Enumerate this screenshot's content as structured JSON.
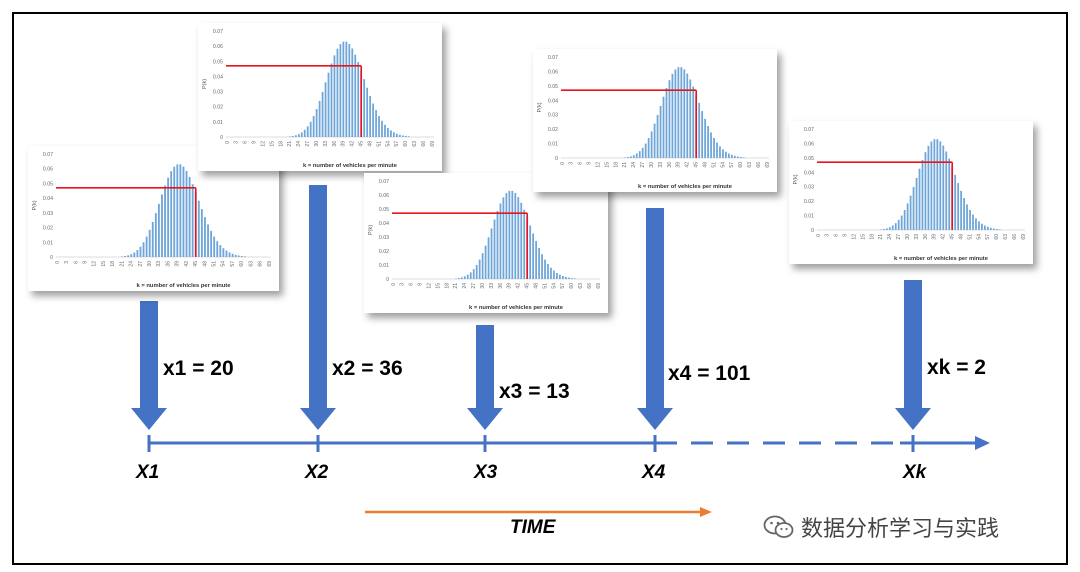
{
  "charts": {
    "y_axis_label": "P(k)",
    "x_axis_label": "k = number of vehicles per minute",
    "y_ticks": [
      "0",
      "0.01",
      "0.02",
      "0.03",
      "0.04",
      "0.05",
      "0.06",
      "0.07"
    ],
    "x_ticks": [
      "0",
      "3",
      "6",
      "9",
      "12",
      "15",
      "18",
      "21",
      "24",
      "27",
      "30",
      "33",
      "36",
      "39",
      "42",
      "45",
      "48",
      "51",
      "54",
      "57",
      "60",
      "63",
      "66",
      "69"
    ],
    "bar_color": "#6fa6d9",
    "highlight_color": "#e8141c"
  },
  "chart_data": [
    {
      "type": "bar",
      "title": "",
      "xlabel": "k = number of vehicles per minute",
      "ylabel": "P(k)",
      "ylim": [
        0,
        0.07
      ],
      "distribution": "Poisson",
      "mean": 40,
      "highlight": {
        "k": 45,
        "p": 0.047
      }
    },
    {
      "type": "bar",
      "title": "",
      "xlabel": "k = number of vehicles per minute",
      "ylabel": "P(k)",
      "ylim": [
        0,
        0.07
      ],
      "distribution": "Poisson",
      "mean": 40,
      "highlight": {
        "k": 45,
        "p": 0.047
      }
    },
    {
      "type": "bar",
      "title": "",
      "xlabel": "k = number of vehicles per minute",
      "ylabel": "P(k)",
      "ylim": [
        0,
        0.07
      ],
      "distribution": "Poisson",
      "mean": 40,
      "highlight": {
        "k": 45,
        "p": 0.047
      }
    },
    {
      "type": "bar",
      "title": "",
      "xlabel": "k = number of vehicles per minute",
      "ylabel": "P(k)",
      "ylim": [
        0,
        0.07
      ],
      "distribution": "Poisson",
      "mean": 40,
      "highlight": {
        "k": 45,
        "p": 0.047
      }
    },
    {
      "type": "bar",
      "title": "",
      "xlabel": "k = number of vehicles per minute",
      "ylabel": "P(k)",
      "ylim": [
        0,
        0.07
      ],
      "distribution": "Poisson",
      "mean": 40,
      "highlight": {
        "k": 45,
        "p": 0.047
      }
    }
  ],
  "observations": [
    {
      "label": "x1 = 20"
    },
    {
      "label": "x2 = 36"
    },
    {
      "label": "x3 = 13"
    },
    {
      "label": "x4 = 101"
    },
    {
      "label": "xk = 2"
    }
  ],
  "timeline": {
    "points": [
      "X1",
      "X2",
      "X3",
      "X4",
      "Xk"
    ],
    "time_label": "TIME",
    "line_color": "#4472c4",
    "time_arrow_color": "#ed7d31"
  },
  "watermark": {
    "text": "数据分析学习与实践",
    "icon": "wechat-icon"
  }
}
